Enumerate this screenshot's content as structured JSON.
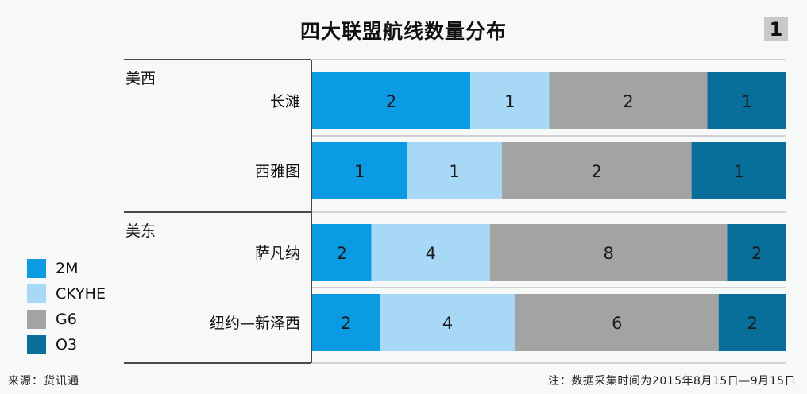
{
  "title": "四大联盟航线数量分布",
  "page_badge": "1",
  "source": "来源：货讯通",
  "note": "注：数据采集时间为2015年8月15日—9月15日",
  "chart_data": {
    "type": "bar",
    "orientation": "horizontal",
    "stacked": true,
    "normalized": true,
    "groups": [
      {
        "name": "美西",
        "categories": [
          "长滩",
          "西雅图"
        ]
      },
      {
        "name": "美东",
        "categories": [
          "萨凡纳",
          "纽约—新泽西"
        ]
      }
    ],
    "categories": [
      "长滩",
      "西雅图",
      "萨凡纳",
      "纽约—新泽西"
    ],
    "series": [
      {
        "name": "2M",
        "color": "#0b9be3",
        "values": [
          2,
          1,
          2,
          2
        ]
      },
      {
        "name": "CKYHE",
        "color": "#a7d9f6",
        "values": [
          1,
          1,
          4,
          4
        ]
      },
      {
        "name": "G6",
        "color": "#a3a3a3",
        "values": [
          2,
          2,
          8,
          6
        ]
      },
      {
        "name": "O3",
        "color": "#086f9a",
        "values": [
          1,
          1,
          2,
          2
        ]
      }
    ],
    "legend_position": "bottom-left",
    "grid": true
  }
}
